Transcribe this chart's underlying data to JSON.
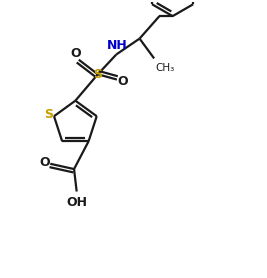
{
  "bg_color": "#ffffff",
  "line_color": "#1a1a1a",
  "S_color": "#c8a000",
  "N_color": "#0000cd",
  "linewidth": 1.6,
  "figsize": [
    2.67,
    2.78
  ],
  "dpi": 100,
  "xlim": [
    0,
    10
  ],
  "ylim": [
    0,
    10.4
  ]
}
